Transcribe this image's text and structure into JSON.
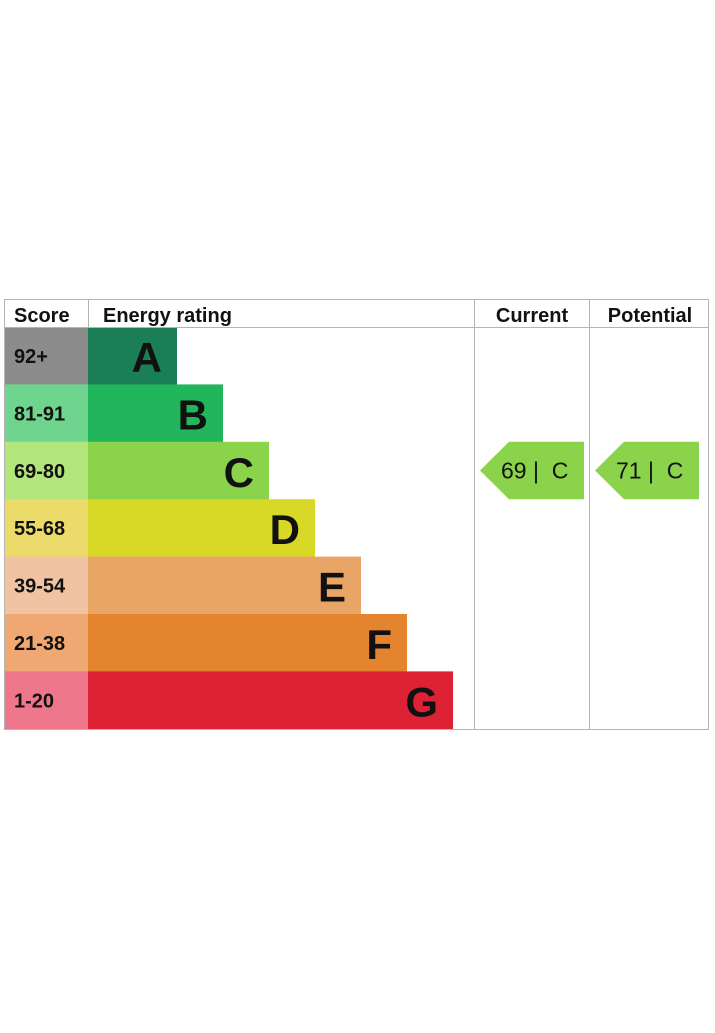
{
  "headers": {
    "score": "Score",
    "energy_rating": "Energy rating",
    "current": "Current",
    "potential": "Potential"
  },
  "chart_data": {
    "type": "bar",
    "bands": [
      {
        "score": "92+",
        "letter": "A",
        "bar_color": "#1b7f56",
        "score_color": "#8c8c8c"
      },
      {
        "score": "81-91",
        "letter": "B",
        "bar_color": "#21b65c",
        "score_color": "#6fd48e"
      },
      {
        "score": "69-80",
        "letter": "C",
        "bar_color": "#8bd34a",
        "score_color": "#b3e57d"
      },
      {
        "score": "55-68",
        "letter": "D",
        "bar_color": "#d8d826",
        "score_color": "#eadb6a"
      },
      {
        "score": "39-54",
        "letter": "E",
        "bar_color": "#e8a566",
        "score_color": "#f0c3a3"
      },
      {
        "score": "21-38",
        "letter": "F",
        "bar_color": "#e5842f",
        "score_color": "#efa872"
      },
      {
        "score": "1-20",
        "letter": "G",
        "bar_color": "#de2236",
        "score_color": "#ee778b"
      }
    ],
    "current": {
      "value": 69,
      "letter": "C",
      "label": "69 |  C",
      "color": "#8bd34a"
    },
    "potential": {
      "value": 71,
      "letter": "C",
      "label": "71 |  C",
      "color": "#8bd34a"
    }
  }
}
